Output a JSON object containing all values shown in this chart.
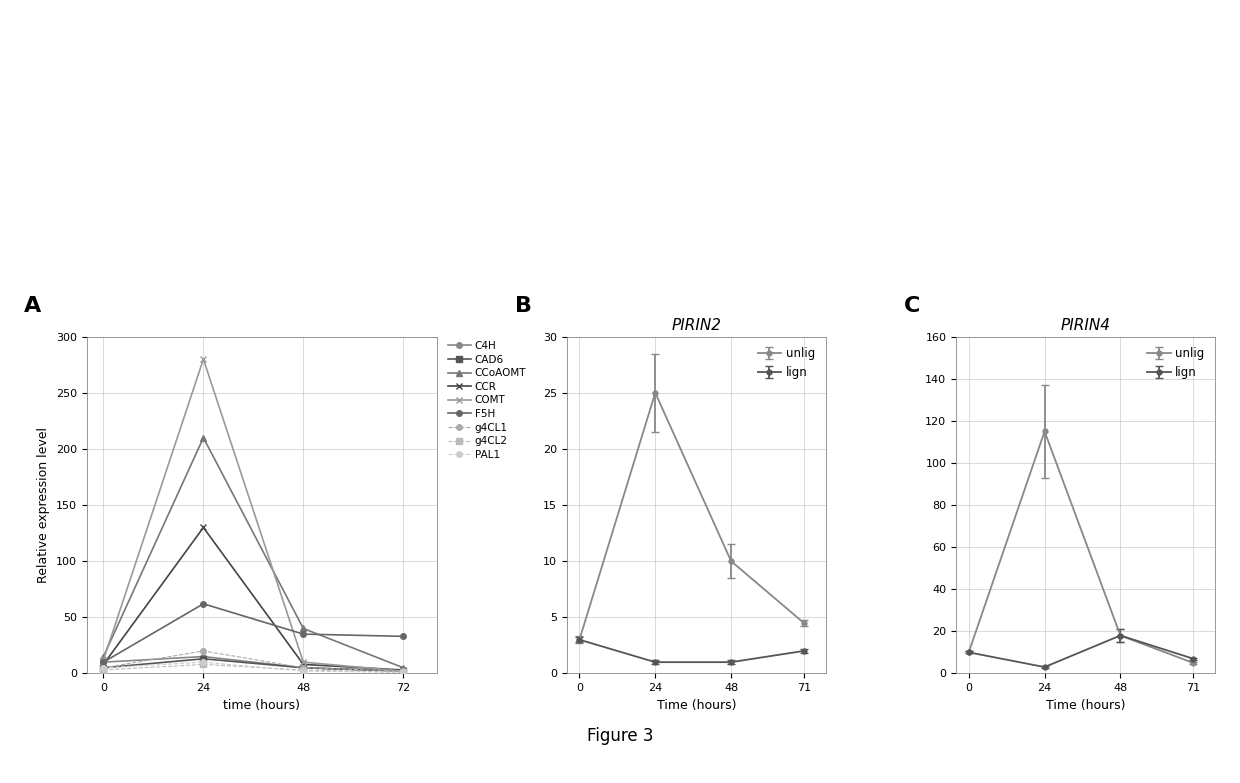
{
  "panel_A": {
    "xlabel": "time (hours)",
    "ylabel": "Relative expression level",
    "xticks": [
      0,
      24,
      48,
      72
    ],
    "ylim": [
      0,
      300
    ],
    "yticks": [
      0,
      50,
      100,
      150,
      200,
      250,
      300
    ],
    "series": {
      "C4H": {
        "x": [
          0,
          24,
          48,
          72
        ],
        "y": [
          10,
          15,
          5,
          2
        ]
      },
      "CAD6": {
        "x": [
          0,
          24,
          48,
          72
        ],
        "y": [
          5,
          13,
          5,
          2
        ]
      },
      "CCoAOMT": {
        "x": [
          0,
          24,
          48,
          72
        ],
        "y": [
          15,
          210,
          40,
          5
        ]
      },
      "CCR": {
        "x": [
          0,
          24,
          48,
          72
        ],
        "y": [
          8,
          130,
          8,
          3
        ]
      },
      "COMT": {
        "x": [
          0,
          24,
          48,
          72
        ],
        "y": [
          12,
          280,
          10,
          2
        ]
      },
      "F5H": {
        "x": [
          0,
          24,
          48,
          72
        ],
        "y": [
          10,
          62,
          35,
          33
        ]
      },
      "g4CL1": {
        "x": [
          0,
          24,
          48,
          72
        ],
        "y": [
          5,
          20,
          5,
          2
        ]
      },
      "g4CL2": {
        "x": [
          0,
          24,
          48,
          72
        ],
        "y": [
          3,
          8,
          3,
          1
        ]
      },
      "PAL1": {
        "x": [
          0,
          24,
          48,
          72
        ],
        "y": [
          5,
          10,
          2,
          1
        ]
      }
    },
    "markers": [
      "o",
      "s",
      "^",
      "x",
      "x",
      "o",
      "o",
      "s",
      "o"
    ],
    "colors": [
      "#888888",
      "#555555",
      "#777777",
      "#444444",
      "#999999",
      "#666666",
      "#aaaaaa",
      "#bbbbbb",
      "#cccccc"
    ],
    "linestyles": [
      "-",
      "-",
      "-",
      "-",
      "-",
      "-",
      "--",
      "--",
      "--"
    ],
    "linewidths": [
      1.2,
      1.2,
      1.2,
      1.2,
      1.2,
      1.2,
      0.8,
      0.8,
      0.8
    ]
  },
  "panel_B": {
    "title": "PIRIN2",
    "xlabel": "Time (hours)",
    "xticks": [
      0,
      24,
      48,
      71
    ],
    "ylim": [
      0,
      30
    ],
    "yticks": [
      0,
      5,
      10,
      15,
      20,
      25,
      30
    ],
    "unlig": {
      "x": [
        0,
        24,
        48,
        71
      ],
      "y": [
        3,
        25,
        10,
        4.5
      ],
      "yerr": [
        0.3,
        3.5,
        1.5,
        0.3
      ]
    },
    "lign": {
      "x": [
        0,
        24,
        48,
        71
      ],
      "y": [
        3,
        1,
        1,
        2
      ],
      "yerr": [
        0.2,
        0.2,
        0.2,
        0.2
      ]
    },
    "color_unlig": "#888888",
    "color_lign": "#555555"
  },
  "panel_C": {
    "title": "PIRIN4",
    "xlabel": "Time (hours)",
    "xticks": [
      0,
      24,
      48,
      71
    ],
    "ylim": [
      0,
      160
    ],
    "yticks": [
      0,
      20,
      40,
      60,
      80,
      100,
      120,
      140,
      160
    ],
    "unlig": {
      "x": [
        0,
        24,
        48,
        71
      ],
      "y": [
        10,
        115,
        18,
        5
      ],
      "yerr": [
        0.5,
        22,
        3,
        0.5
      ]
    },
    "lign": {
      "x": [
        0,
        24,
        48,
        71
      ],
      "y": [
        10,
        3,
        18,
        7
      ],
      "yerr": [
        0.5,
        0.5,
        3,
        0.5
      ]
    },
    "color_unlig": "#888888",
    "color_lign": "#555555"
  },
  "figure_caption": "Figure 3",
  "bg_color": "#ffffff"
}
